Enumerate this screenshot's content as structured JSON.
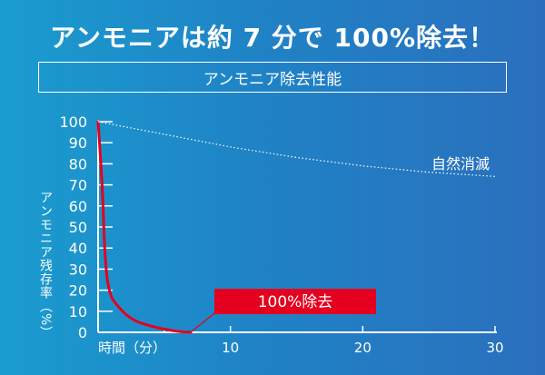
{
  "headline": "アンモニアは約 7 分で 100%除去！",
  "subtitle": "アンモニア除去性能",
  "colors": {
    "accent_red": "#e4001e",
    "natural_line": "#ffffff",
    "background_start": "#1a9ccf",
    "background_end": "#2a6fbd"
  },
  "chart_data": {
    "type": "line",
    "title": "アンモニア除去性能",
    "xlabel": "時間（分）",
    "ylabel": "アンモニア残存率（%）",
    "xlim": [
      0,
      30
    ],
    "ylim": [
      0,
      100
    ],
    "x_ticks": [
      10,
      20,
      30
    ],
    "y_ticks": [
      0,
      10,
      20,
      30,
      40,
      50,
      60,
      70,
      80,
      90,
      100
    ],
    "grid": false,
    "series": [
      {
        "name": "100%除去",
        "style": "solid",
        "color": "#e4001e",
        "x": [
          0,
          0.3,
          0.5,
          0.7,
          1,
          1.3,
          1.7,
          2.2,
          3,
          4,
          5,
          6,
          7
        ],
        "y": [
          100,
          70,
          40,
          25,
          17,
          14,
          11,
          8,
          5,
          3,
          1.5,
          0.5,
          0
        ]
      },
      {
        "name": "自然消滅",
        "style": "dotted",
        "color": "#ffffff",
        "x": [
          0,
          5,
          10,
          15,
          20,
          25,
          30
        ],
        "y": [
          100,
          94,
          88,
          83,
          79,
          76,
          74
        ]
      }
    ],
    "annotations": [
      {
        "text": "自然消滅",
        "series": "自然消滅"
      },
      {
        "text": "100%除去",
        "series": "100%除去",
        "callout": true
      }
    ]
  }
}
